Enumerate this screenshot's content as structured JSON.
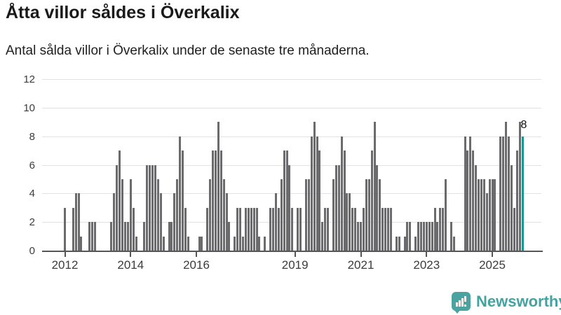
{
  "header": {
    "title": "Åtta villor såldes i Överkalix",
    "subtitle": "Antal sålda villor i Överkalix under de senaste tre månaderna."
  },
  "chart_data": {
    "type": "bar",
    "title": "Åtta villor såldes i Överkalix",
    "subtitle": "Antal sålda villor i Överkalix under de senaste tre månaderna.",
    "x_start": "2012-01",
    "x_frequency": "monthly",
    "values": [
      3,
      0,
      0,
      3,
      4,
      4,
      1,
      0,
      0,
      2,
      2,
      2,
      0,
      0,
      0,
      0,
      0,
      2,
      4,
      6,
      7,
      5,
      2,
      2,
      5,
      3,
      1,
      0,
      0,
      2,
      6,
      6,
      6,
      6,
      5,
      4,
      1,
      0,
      2,
      2,
      4,
      5,
      8,
      7,
      3,
      1,
      0,
      0,
      0,
      1,
      1,
      0,
      3,
      5,
      7,
      7,
      9,
      7,
      5,
      4,
      2,
      0,
      1,
      3,
      3,
      1,
      3,
      3,
      3,
      3,
      3,
      1,
      0,
      1,
      0,
      3,
      3,
      4,
      3,
      5,
      7,
      7,
      6,
      3,
      0,
      3,
      3,
      0,
      5,
      5,
      8,
      9,
      8,
      7,
      2,
      3,
      3,
      0,
      5,
      6,
      6,
      8,
      7,
      4,
      4,
      3,
      3,
      2,
      2,
      3,
      5,
      5,
      7,
      9,
      6,
      5,
      3,
      3,
      3,
      3,
      0,
      1,
      1,
      0,
      1,
      2,
      2,
      0,
      1,
      2,
      2,
      2,
      2,
      2,
      2,
      3,
      2,
      3,
      3,
      5,
      0,
      2,
      1,
      0,
      0,
      0,
      8,
      7,
      8,
      7,
      6,
      5,
      5,
      5,
      4,
      5,
      5,
      5,
      0,
      8,
      8,
      9,
      8,
      6,
      3,
      7,
      9,
      8
    ],
    "highlight_last": {
      "value": 8,
      "label": "8",
      "color": "#18988f"
    },
    "bar_color": "#6b6b6e",
    "ylim": [
      0,
      12
    ],
    "yticks": [
      0,
      2,
      4,
      6,
      8,
      10,
      12
    ],
    "xtick_labels": [
      "2012",
      "2014",
      "2016",
      "2019",
      "2021",
      "2023",
      "2025"
    ],
    "xtick_month_indices": [
      0,
      24,
      48,
      84,
      108,
      132,
      156
    ],
    "grid": true,
    "legend": "none"
  },
  "annotation": {
    "last_value_label": "8"
  },
  "footer": {
    "brand": "Newsworthy",
    "logo_icon": "bar-chart-speech-bubble-icon",
    "brand_color": "#44a2a0"
  }
}
